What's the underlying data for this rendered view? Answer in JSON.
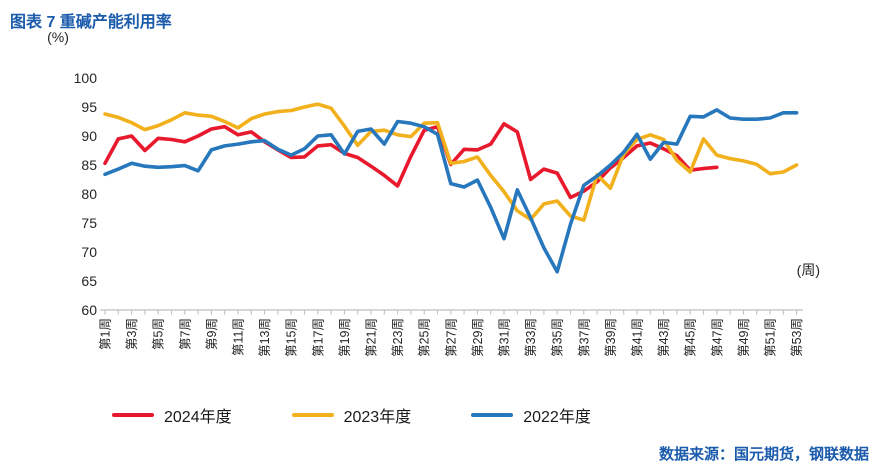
{
  "title": "图表 7 重碱产能利用率",
  "y_axis_unit": "(%)",
  "x_axis_unit": "(周)",
  "footer": "数据来源：国元期货，钢联数据",
  "chart_data": {
    "type": "line",
    "title": "重碱产能利用率",
    "xlabel": "周",
    "ylabel": "%",
    "ylim": [
      60,
      100
    ],
    "y_ticks": [
      60,
      65,
      70,
      75,
      80,
      85,
      90,
      95,
      100
    ],
    "grid": false,
    "legend_position": "bottom",
    "x_count": 53,
    "x_tick_labels": [
      "第1周",
      "第3周",
      "第5周",
      "第7周",
      "第9周",
      "第11周",
      "第13周",
      "第15周",
      "第17周",
      "第19周",
      "第21周",
      "第23周",
      "第25周",
      "第27周",
      "第29周",
      "第31周",
      "第33周",
      "第35周",
      "第37周",
      "第39周",
      "第41周",
      "第43周",
      "第45周",
      "第47周",
      "第49周",
      "第51周",
      "第53周"
    ],
    "axis_color": "#bfbfbf",
    "tick_label_color": "#262626",
    "series": [
      {
        "name": "2024年度",
        "color": "#e8192d",
        "values": [
          85.3,
          89.5,
          90.0,
          87.5,
          89.6,
          89.4,
          89.0,
          90.0,
          91.2,
          91.6,
          90.2,
          90.7,
          89.0,
          87.6,
          86.3,
          86.4,
          88.3,
          88.5,
          87.0,
          86.3,
          84.8,
          83.2,
          81.4,
          86.5,
          91.0,
          91.6,
          85.1,
          87.7,
          87.6,
          88.6,
          92.1,
          90.7,
          82.5,
          84.3,
          83.6,
          79.4,
          80.5,
          82.1,
          84.5,
          86.3,
          88.3,
          88.8,
          87.8,
          86.6,
          84.1,
          84.4,
          84.6
        ]
      },
      {
        "name": "2023年度",
        "color": "#f2b11c",
        "values": [
          93.8,
          93.2,
          92.3,
          91.1,
          91.8,
          92.8,
          94.0,
          93.6,
          93.4,
          92.5,
          91.4,
          93.0,
          93.8,
          94.2,
          94.4,
          95.0,
          95.5,
          94.8,
          91.7,
          88.4,
          90.8,
          91.0,
          90.2,
          89.9,
          92.2,
          92.3,
          85.3,
          85.6,
          86.4,
          83.2,
          80.4,
          77.1,
          75.6,
          78.3,
          78.8,
          76.2,
          75.5,
          83.3,
          81.0,
          86.9,
          89.4,
          90.2,
          89.4,
          85.8,
          83.8,
          89.5,
          86.7,
          86.1,
          85.7,
          85.1,
          83.5,
          83.8,
          85.0
        ]
      },
      {
        "name": "2022年度",
        "color": "#2777bd",
        "values": [
          83.4,
          84.3,
          85.3,
          84.8,
          84.6,
          84.7,
          84.9,
          84.0,
          87.6,
          88.3,
          88.6,
          89.0,
          89.2,
          87.7,
          86.7,
          87.8,
          90.0,
          90.2,
          86.9,
          90.8,
          91.2,
          88.6,
          92.5,
          92.2,
          91.6,
          90.3,
          81.8,
          81.2,
          82.4,
          77.7,
          72.3,
          80.7,
          75.9,
          70.7,
          66.6,
          74.8,
          81.5,
          83.1,
          85.0,
          87.2,
          90.3,
          86.0,
          88.9,
          88.6,
          93.4,
          93.3,
          94.5,
          93.1,
          92.9,
          92.9,
          93.1,
          94.0,
          94.0
        ]
      }
    ]
  }
}
